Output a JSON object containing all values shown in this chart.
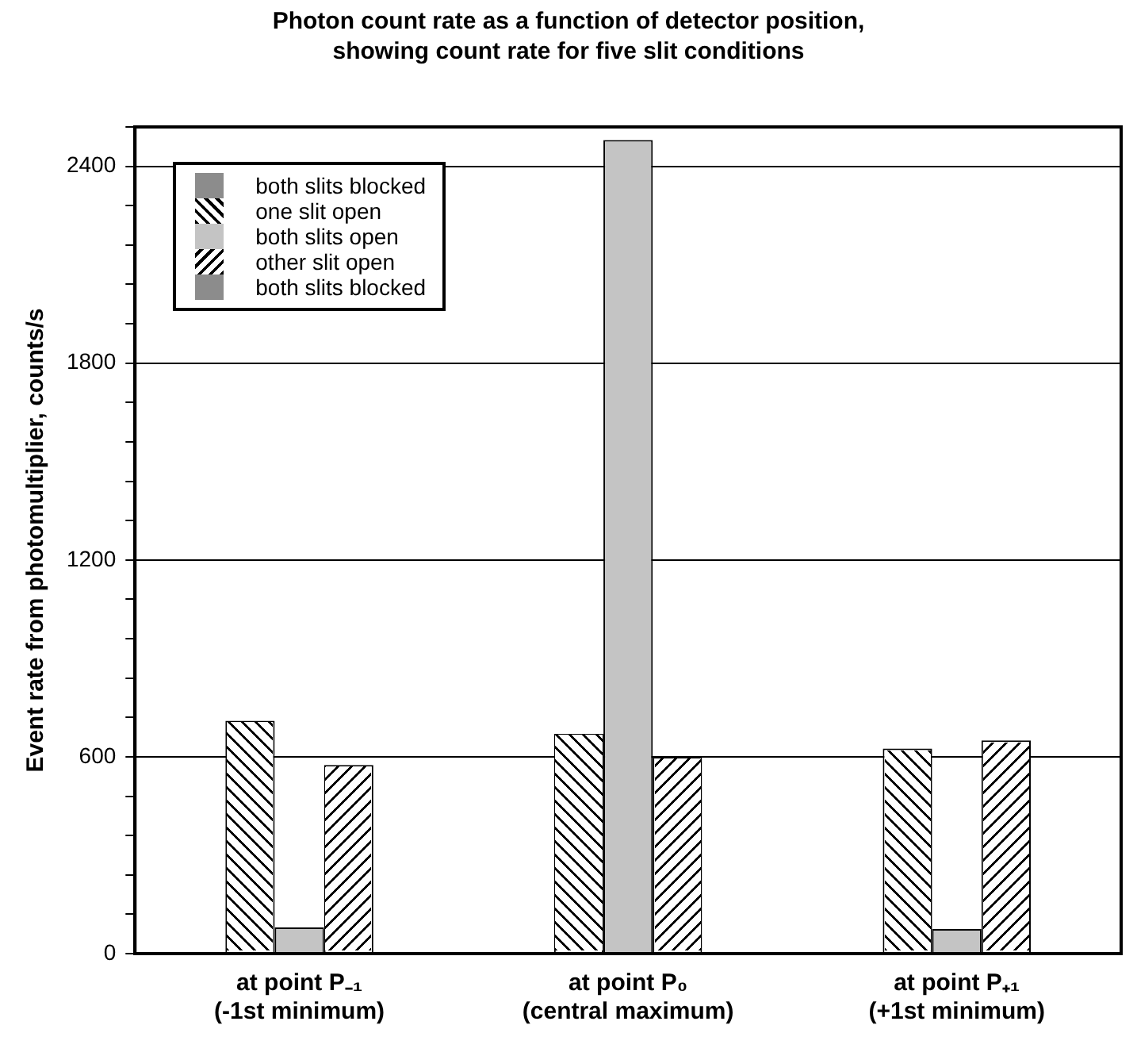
{
  "chart_data": {
    "type": "bar",
    "title": "Photon count rate as a function of detector position,\nshowing count rate for five slit conditions",
    "ylabel": "Event rate from photomultiplier, counts/s",
    "categories": [
      "at point P₋₁\n(-1st minimum)",
      "at point P₀\n(central maximum)",
      "at point P₊₁\n(+1st minimum)"
    ],
    "series": [
      {
        "name": "both slits blocked",
        "color": "#8c8c8c",
        "values": [
          0,
          0,
          0
        ]
      },
      {
        "name": "one slit open",
        "color": "#ffffff",
        "values": [
          710,
          670,
          625
        ]
      },
      {
        "name": "both slits open",
        "color": "#c4c4c4",
        "values": [
          80,
          2480,
          75
        ]
      },
      {
        "name": "other slit open",
        "color": "#ffffff",
        "values": [
          575,
          600,
          650
        ]
      },
      {
        "name": "both slits blocked",
        "color": "#8c8c8c",
        "values": [
          0,
          0,
          0
        ]
      }
    ],
    "ylim": [
      0,
      2520
    ],
    "yticks": [
      0,
      {
        "value": 120,
        "label": null
      },
      {
        "value": 240,
        "label": null
      },
      {
        "value": 360,
        "label": null
      },
      {
        "value": 480,
        "label": null
      },
      600,
      {
        "value": 720,
        "label": null
      },
      {
        "value": 840,
        "label": null
      },
      {
        "value": 960,
        "label": null
      },
      {
        "value": 1080,
        "label": null
      },
      1200,
      {
        "value": 1320,
        "label": null
      },
      {
        "value": 1440,
        "label": null
      },
      {
        "value": 1560,
        "label": null
      },
      {
        "value": 1680,
        "label": null
      },
      1800,
      {
        "value": 1920,
        "label": null
      },
      {
        "value": 2040,
        "label": null
      },
      {
        "value": 2160,
        "label": null
      },
      {
        "value": 2280,
        "label": null
      },
      2400,
      {
        "value": 2520,
        "label": null
      }
    ],
    "grid": "y",
    "legend": "top left"
  }
}
